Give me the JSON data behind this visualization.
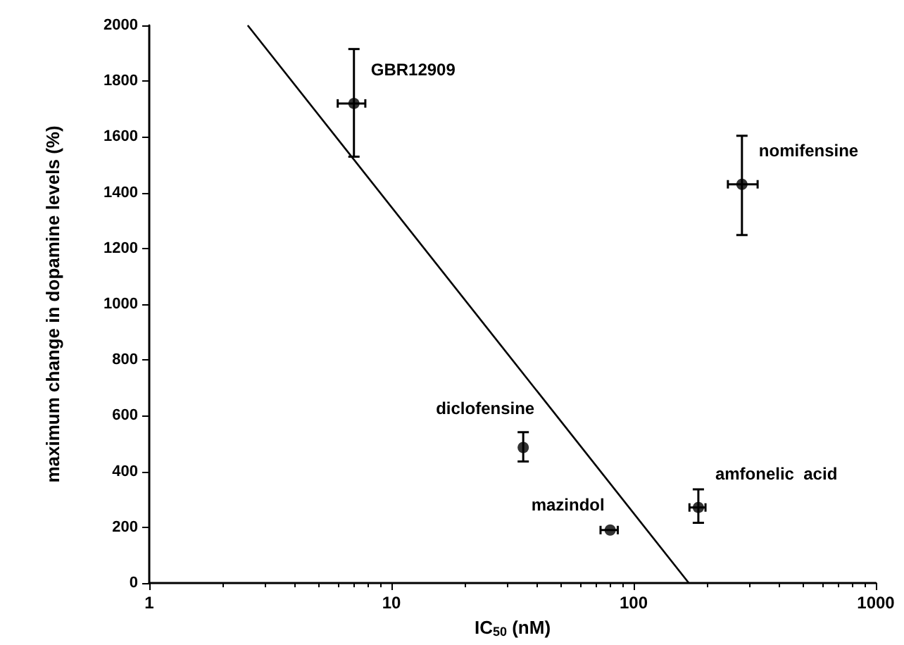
{
  "chart_data": {
    "type": "scatter",
    "xlabel": "IC$_{50}$ (nM)",
    "ylabel": "maximum change in dopamine levels (%)",
    "series": [
      {
        "color": "#000000",
        "marker": "circle",
        "x": [
          7,
          280,
          35,
          80,
          185
        ],
        "values": [
          1720,
          1430,
          486,
          190,
          271
        ],
        "errors": [
          [
            1529,
            1915
          ],
          [
            1248,
            1604
          ],
          [
            436,
            541
          ],
          null,
          [
            216,
            336
          ]
        ],
        "xerrors": [
          [
            6,
            7.8
          ],
          [
            245,
            325
          ],
          null,
          [
            73,
            86
          ],
          [
            170,
            198
          ]
        ]
      },
      {
        "type": "line",
        "color": "#000000",
        "marker": "none",
        "x": [
          2.55,
          169
        ],
        "values": [
          2000,
          0
        ]
      }
    ],
    "annotations": [
      {
        "text": "GBR12909",
        "x": 7,
        "y": 1720
      },
      {
        "text": "nomifensine",
        "x": 280,
        "y": 1430
      },
      {
        "text": "diclofensine",
        "x": 35,
        "y": 486
      },
      {
        "text": "mazindol",
        "x": 80,
        "y": 190
      },
      {
        "text": "amfonelic  acid",
        "x": 185,
        "y": 271
      }
    ],
    "log": "x",
    "xlim": [
      1,
      1000
    ],
    "xticks": [
      1,
      10,
      100,
      1000
    ],
    "ylim": [
      0,
      2000
    ],
    "yticks": [
      0,
      200,
      400,
      600,
      800,
      1000,
      1200,
      1400,
      1600,
      1800,
      2000
    ],
    "grid": false,
    "line_style": "solid"
  }
}
